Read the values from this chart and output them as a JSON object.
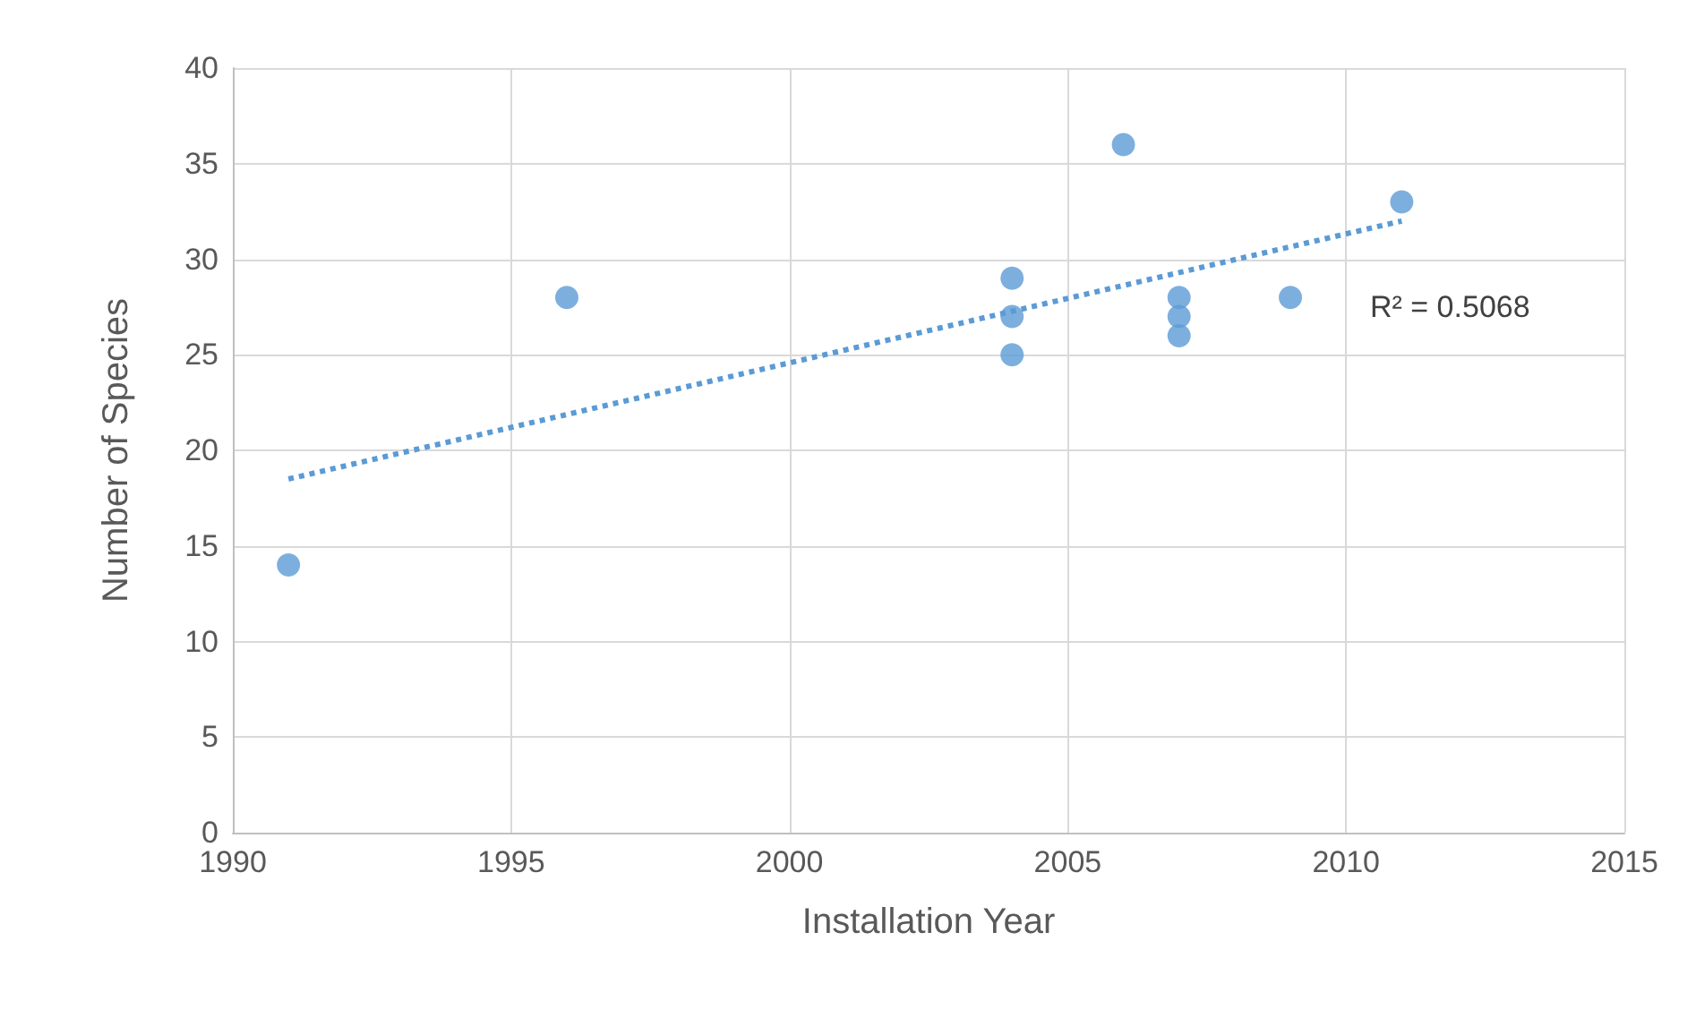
{
  "chart_data": {
    "type": "scatter",
    "xlabel": "Installation Year",
    "ylabel": "Number of Species",
    "xlim": [
      1990,
      2015
    ],
    "xticks": [
      1990,
      1995,
      2000,
      2005,
      2010,
      2015
    ],
    "ylim": [
      0,
      40
    ],
    "yticks": [
      0,
      5,
      10,
      15,
      20,
      25,
      30,
      35,
      40
    ],
    "grid": true,
    "marker": "circle",
    "series": [
      {
        "color": "#5b9bd5",
        "x": [
          1991,
          1996,
          2004,
          2004,
          2004,
          2006,
          2007,
          2007,
          2007,
          2009,
          2011
        ],
        "values": [
          14,
          28,
          29,
          27,
          25,
          36,
          28,
          27,
          26,
          28,
          33
        ]
      },
      {
        "type": "line",
        "color": "#5b9bd5",
        "line_style": "dotted",
        "marker": "none",
        "x": [
          1991,
          2011
        ],
        "values": [
          18.5,
          32
        ]
      }
    ],
    "annotations": [
      "R² = 0.5068"
    ]
  }
}
